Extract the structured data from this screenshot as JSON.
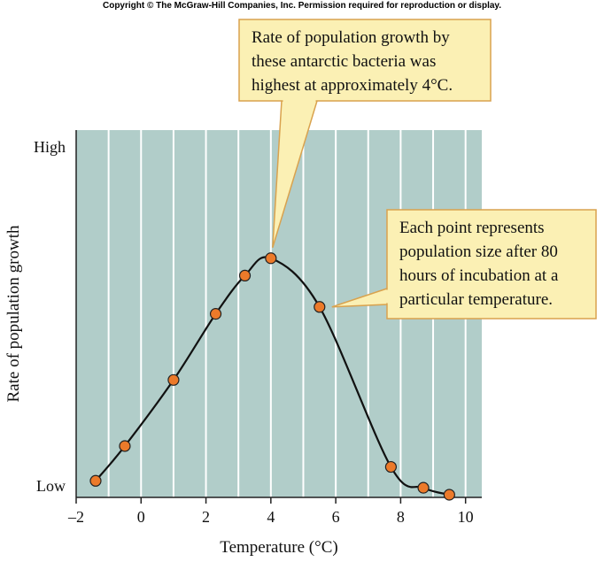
{
  "copyright": "Copyright © The McGraw-Hill Companies, Inc. Permission required for reproduction or display.",
  "colors": {
    "plot_background": "#b1cdc9",
    "gridline": "#ffffff",
    "point_fill": "#ec7a2a",
    "callout_fill": "#fbf0b4",
    "callout_border": "#d9a24e"
  },
  "chart_data": {
    "type": "scatter",
    "xlabel": "Temperature (°C)",
    "ylabel": "Rate of population growth",
    "xlim": [
      -2,
      10.5
    ],
    "ylim": [
      0,
      1
    ],
    "x_ticks": [
      -2,
      0,
      2,
      4,
      6,
      8,
      10
    ],
    "x_tick_labels": [
      "–2",
      "0",
      "2",
      "4",
      "6",
      "8",
      "10"
    ],
    "y_tick_labels": [
      "Low",
      "High"
    ],
    "grid": "vertical",
    "x": [
      -1.4,
      -0.5,
      1.0,
      2.3,
      3.2,
      4.0,
      5.5,
      7.7,
      8.7,
      9.5
    ],
    "y": [
      0.04,
      0.14,
      0.33,
      0.52,
      0.63,
      0.68,
      0.54,
      0.08,
      0.02,
      0.0
    ],
    "curve": "smooth",
    "annotations": [
      {
        "lines": [
          "Rate of population growth by",
          "these antarctic bacteria was",
          "highest at approximately 4°C."
        ],
        "points_to": {
          "x": 4.0,
          "y": 0.68
        }
      },
      {
        "lines": [
          "Each point represents",
          "population size after 80",
          "hours of incubation at a",
          "particular temperature."
        ],
        "points_to": {
          "x": 5.5,
          "y": 0.54
        }
      }
    ]
  }
}
